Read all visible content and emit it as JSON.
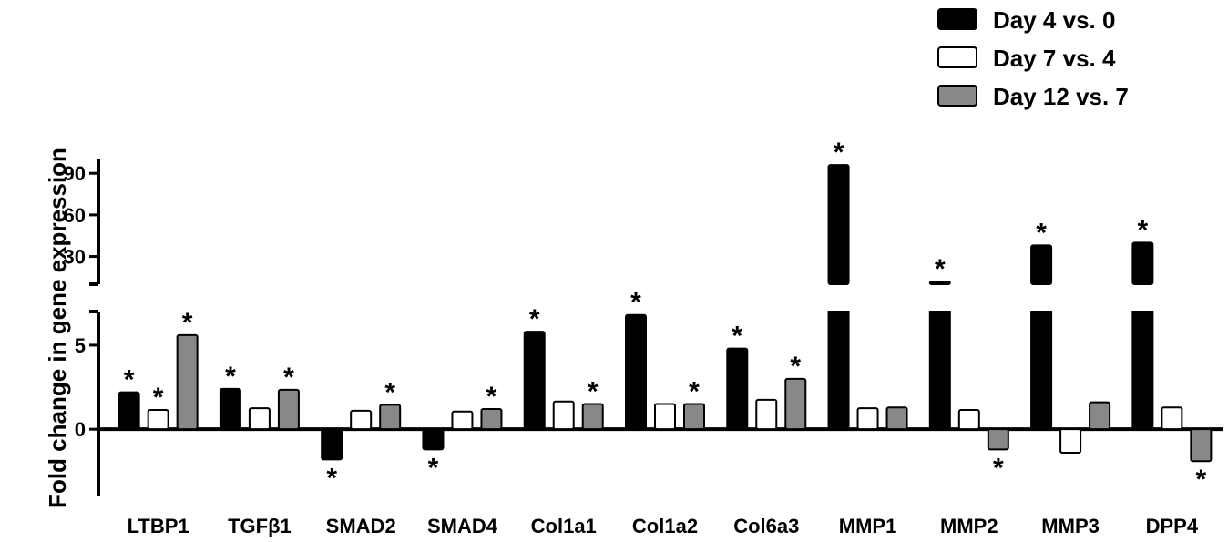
{
  "chart_data": {
    "type": "bar",
    "ylabel": "Fold change in gene expression",
    "categories": [
      "LTBP1",
      "TGFβ1",
      "SMAD2",
      "SMAD4",
      "Col1a1",
      "Col1a2",
      "Col6a3",
      "MMP1",
      "MMP2",
      "MMP3",
      "DPP4"
    ],
    "series": [
      {
        "name": "Day 4 vs. 0",
        "color": "#000000",
        "values": [
          2.2,
          2.4,
          -1.8,
          -1.2,
          5.8,
          6.8,
          4.8,
          96,
          12,
          38,
          40
        ],
        "significant": [
          true,
          true,
          true,
          true,
          true,
          true,
          true,
          true,
          true,
          true,
          true
        ]
      },
      {
        "name": "Day 7 vs. 4",
        "color": "#ffffff",
        "values": [
          1.15,
          1.25,
          1.1,
          1.05,
          1.65,
          1.5,
          1.75,
          1.25,
          1.15,
          -1.4,
          1.3
        ],
        "significant": [
          true,
          false,
          false,
          false,
          false,
          false,
          false,
          false,
          false,
          false,
          false
        ]
      },
      {
        "name": "Day 12 vs. 7",
        "color": "#888888",
        "values": [
          5.6,
          2.35,
          1.45,
          1.2,
          1.5,
          1.5,
          3.0,
          1.3,
          -1.2,
          1.6,
          -1.9
        ],
        "significant": [
          true,
          true,
          true,
          true,
          true,
          true,
          true,
          false,
          true,
          false,
          true
        ]
      }
    ],
    "yaxis": {
      "segments": [
        {
          "range": [
            -4,
            7
          ],
          "ticks": [
            0,
            5
          ]
        },
        {
          "range": [
            10,
            100
          ],
          "ticks": [
            30,
            60,
            90
          ]
        }
      ]
    },
    "significance_marker": "*",
    "legend": {
      "position": "top-right",
      "entries": [
        "Day 4 vs. 0",
        "Day 7 vs. 4",
        "Day 12 vs. 7"
      ]
    }
  }
}
